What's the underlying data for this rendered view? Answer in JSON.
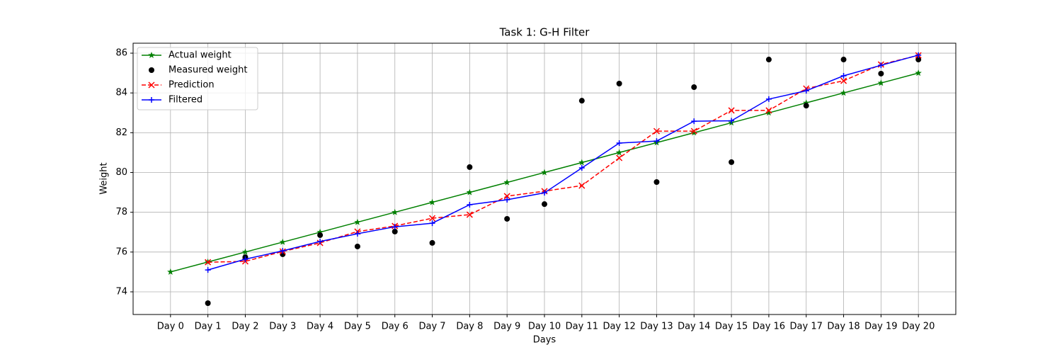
{
  "chart_data": {
    "type": "line",
    "title": "Task 1: G-H Filter",
    "xlabel": "Days",
    "ylabel": "Weight",
    "categories": [
      "Day 0",
      "Day 1",
      "Day 2",
      "Day 3",
      "Day 4",
      "Day 5",
      "Day 6",
      "Day 7",
      "Day 8",
      "Day 9",
      "Day 10",
      "Day 11",
      "Day 12",
      "Day 13",
      "Day 14",
      "Day 15",
      "Day 16",
      "Day 17",
      "Day 18",
      "Day 19",
      "Day 20"
    ],
    "series": [
      {
        "name": "Actual weight",
        "color": "#008000",
        "marker": "star",
        "linestyle": "solid",
        "values": [
          75,
          75.5,
          76,
          76.5,
          77,
          77.5,
          78,
          78.5,
          79,
          79.5,
          80,
          80.5,
          81,
          81.5,
          82,
          82.5,
          83,
          83.5,
          84,
          84.5,
          85
        ]
      },
      {
        "name": "Measured weight",
        "color": "#000000",
        "marker": "circle",
        "linestyle": "none",
        "values": [
          null,
          73.43,
          75.74,
          75.89,
          76.85,
          76.28,
          77.03,
          76.46,
          80.27,
          77.67,
          78.41,
          83.61,
          84.47,
          79.52,
          84.29,
          80.52,
          85.68,
          83.36,
          85.68,
          84.97,
          85.68
        ]
      },
      {
        "name": "Prediction",
        "color": "#ff0000",
        "marker": "x",
        "linestyle": "dashed",
        "values": [
          null,
          75.49,
          75.53,
          76.03,
          76.46,
          77.03,
          77.31,
          77.7,
          77.88,
          78.81,
          79.06,
          79.34,
          80.73,
          82.08,
          82.08,
          83.12,
          83.12,
          84.22,
          84.61,
          85.43,
          85.89
        ]
      },
      {
        "name": "Filtered",
        "color": "#0000ff",
        "marker": "plus",
        "linestyle": "solid",
        "values": [
          null,
          75.1,
          75.64,
          76.06,
          76.53,
          76.92,
          77.27,
          77.45,
          78.38,
          78.63,
          78.98,
          80.23,
          81.48,
          81.58,
          82.58,
          82.6,
          83.69,
          84.11,
          84.86,
          85.39,
          85.9
        ]
      }
    ],
    "ylim": [
      72.86,
      86.5
    ],
    "yticks": [
      74,
      76,
      78,
      80,
      82,
      84,
      86
    ],
    "grid": true,
    "legend": "upper left"
  }
}
